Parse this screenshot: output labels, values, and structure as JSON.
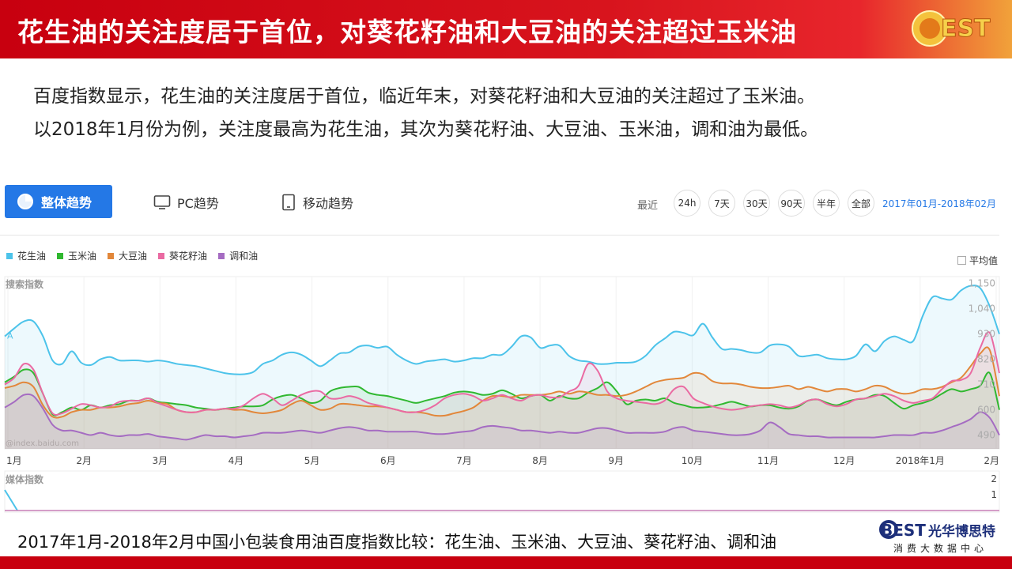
{
  "header": {
    "title": "花生油的关注度居于首位，对葵花籽油和大豆油的关注超过玉米油"
  },
  "intro": {
    "line1": "百度指数显示，花生油的关注度居于首位，临近年末，对葵花籽油和大豆油的关注超过了玉米油。",
    "line2": "以2018年1月份为例，关注度最高为花生油，其次为葵花籽油、大豆油、玉米油，调和油为最低。"
  },
  "tabs": {
    "overall": "整体趋势",
    "pc": "PC趋势",
    "mobile": "移动趋势"
  },
  "range": {
    "label": "最近",
    "options": [
      "24h",
      "7天",
      "30天",
      "90天",
      "半年",
      "全部"
    ],
    "selected_text": "2017年01月-2018年02月"
  },
  "legend_avg": "平均值",
  "caption": "2017年1月-2018年2月中国小包装食用油百度指数比较：花生油、玉米油、大豆油、葵花籽油、调和油",
  "brand": {
    "logo_text": "BEST",
    "name": "光华博思特",
    "sub": "消费大数据中心"
  },
  "colors": {
    "banner": "#c8000f",
    "accent": "#2478e6",
    "peanut": "#4cc3ea",
    "corn": "#30b830",
    "soy": "#e2873a",
    "sunflower": "#ea6aa2",
    "blend": "#a56cc2"
  },
  "chart_data": {
    "type": "area",
    "ylabel": "搜索指数",
    "watermark": "@index.baidu.com",
    "ylim": [
      430,
      1180
    ],
    "yticks": [
      490,
      600,
      710,
      820,
      930,
      1040,
      1150
    ],
    "xticks": [
      "1月",
      "2月",
      "3月",
      "4月",
      "5月",
      "6月",
      "7月",
      "8月",
      "9月",
      "10月",
      "11月",
      "12月",
      "2018年1月",
      "2月"
    ],
    "marker_label": "A",
    "grid": true,
    "legend_position": "top-left",
    "series": [
      {
        "name": "花生油",
        "color": "#4cc3ea",
        "values": [
          920,
          955,
          985,
          985,
          920,
          815,
          800,
          855,
          805,
          795,
          820,
          830,
          815,
          815,
          815,
          810,
          815,
          810,
          800,
          795,
          790,
          780,
          770,
          760,
          755,
          755,
          765,
          800,
          815,
          840,
          850,
          840,
          815,
          790,
          815,
          845,
          850,
          875,
          880,
          870,
          875,
          840,
          815,
          800,
          810,
          815,
          820,
          810,
          815,
          825,
          825,
          840,
          840,
          875,
          920,
          915,
          870,
          880,
          880,
          835,
          815,
          810,
          800,
          800,
          805,
          805,
          810,
          835,
          880,
          910,
          940,
          935,
          925,
          975,
          915,
          865,
          865,
          860,
          850,
          850,
          880,
          885,
          875,
          835,
          835,
          840,
          825,
          820,
          820,
          835,
          885,
          855,
          900,
          920,
          905,
          900,
          1010,
          1090,
          1085,
          1080,
          1120,
          1140,
          1130,
          1050,
          930
        ]
      },
      {
        "name": "玉米油",
        "color": "#30b830",
        "values": [
          720,
          745,
          775,
          760,
          670,
          580,
          590,
          610,
          600,
          620,
          610,
          620,
          625,
          640,
          640,
          650,
          635,
          630,
          625,
          620,
          610,
          605,
          600,
          605,
          610,
          615,
          615,
          620,
          645,
          660,
          665,
          650,
          630,
          640,
          680,
          695,
          700,
          700,
          675,
          665,
          660,
          650,
          640,
          630,
          640,
          650,
          660,
          675,
          680,
          675,
          665,
          670,
          685,
          670,
          650,
          660,
          665,
          640,
          660,
          650,
          650,
          675,
          695,
          720,
          680,
          625,
          640,
          645,
          640,
          650,
          630,
          620,
          610,
          610,
          615,
          625,
          635,
          625,
          615,
          620,
          620,
          610,
          605,
          615,
          640,
          645,
          630,
          620,
          635,
          645,
          650,
          665,
          660,
          630,
          605,
          620,
          630,
          645,
          670,
          690,
          680,
          690,
          705,
          760,
          600
        ]
      },
      {
        "name": "大豆油",
        "color": "#e2873a",
        "values": [
          695,
          705,
          720,
          700,
          620,
          570,
          570,
          590,
          600,
          600,
          610,
          610,
          615,
          625,
          630,
          640,
          630,
          625,
          600,
          590,
          590,
          600,
          600,
          605,
          600,
          600,
          590,
          585,
          590,
          600,
          625,
          640,
          620,
          600,
          605,
          625,
          625,
          620,
          615,
          615,
          610,
          600,
          590,
          590,
          585,
          575,
          575,
          585,
          595,
          610,
          640,
          660,
          660,
          655,
          665,
          665,
          665,
          670,
          680,
          670,
          680,
          675,
          665,
          665,
          660,
          665,
          680,
          700,
          720,
          730,
          735,
          740,
          760,
          755,
          725,
          715,
          715,
          710,
          700,
          695,
          695,
          700,
          705,
          690,
          700,
          690,
          680,
          690,
          690,
          680,
          690,
          705,
          700,
          680,
          670,
          675,
          690,
          690,
          700,
          720,
          740,
          790,
          845,
          860,
          660
        ]
      },
      {
        "name": "葵花籽油",
        "color": "#ea6aa2",
        "values": [
          710,
          740,
          800,
          775,
          670,
          585,
          585,
          605,
          625,
          620,
          610,
          615,
          635,
          640,
          640,
          650,
          630,
          615,
          600,
          590,
          590,
          600,
          600,
          605,
          605,
          620,
          650,
          670,
          650,
          620,
          640,
          665,
          680,
          680,
          650,
          650,
          660,
          650,
          630,
          620,
          610,
          600,
          590,
          590,
          600,
          620,
          650,
          665,
          670,
          660,
          640,
          650,
          665,
          650,
          640,
          660,
          665,
          655,
          655,
          680,
          705,
          800,
          770,
          680,
          650,
          640,
          635,
          630,
          625,
          640,
          690,
          700,
          650,
          630,
          615,
          605,
          600,
          605,
          615,
          620,
          625,
          620,
          610,
          620,
          640,
          645,
          625,
          615,
          625,
          645,
          650,
          660,
          670,
          660,
          640,
          630,
          640,
          650,
          690,
          725,
          730,
          760,
          870,
          935,
          760
        ]
      },
      {
        "name": "调和油",
        "color": "#a56cc2",
        "values": [
          610,
          635,
          665,
          660,
          605,
          535,
          510,
          510,
          500,
          490,
          500,
          490,
          485,
          490,
          490,
          495,
          485,
          480,
          475,
          470,
          480,
          490,
          485,
          485,
          480,
          485,
          490,
          500,
          500,
          500,
          505,
          510,
          505,
          500,
          510,
          520,
          525,
          520,
          510,
          510,
          505,
          505,
          505,
          505,
          500,
          495,
          495,
          500,
          505,
          510,
          525,
          530,
          525,
          520,
          510,
          510,
          505,
          500,
          505,
          500,
          500,
          510,
          520,
          520,
          510,
          500,
          500,
          500,
          500,
          505,
          520,
          525,
          510,
          505,
          500,
          495,
          490,
          490,
          495,
          510,
          545,
          525,
          495,
          490,
          485,
          485,
          480,
          480,
          480,
          480,
          480,
          480,
          485,
          490,
          490,
          490,
          500,
          500,
          510,
          525,
          540,
          560,
          590,
          565,
          490
        ]
      }
    ]
  },
  "media_chart": {
    "ylabel": "媒体指数",
    "yticks": [
      2,
      1
    ]
  }
}
